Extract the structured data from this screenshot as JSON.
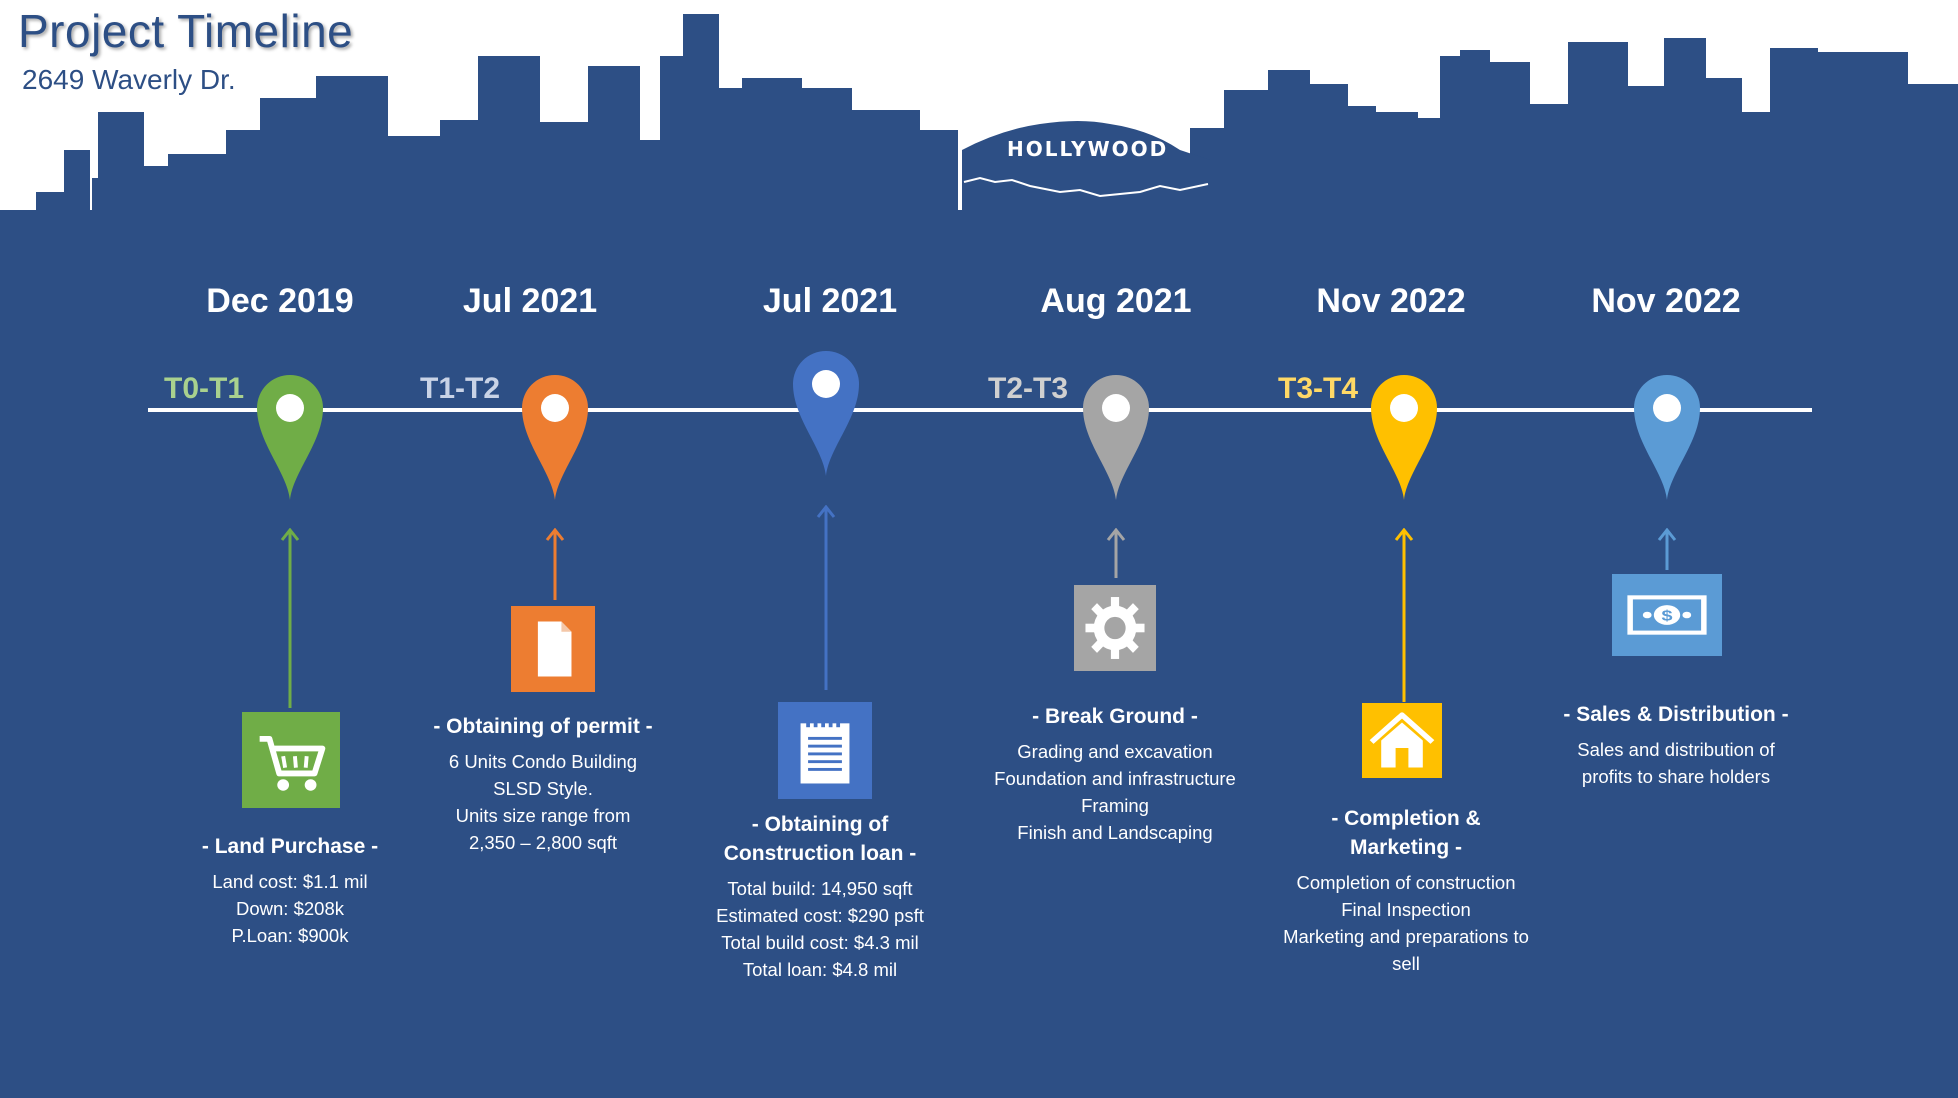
{
  "header": {
    "title": "Project Timeline",
    "subtitle": "2649 Waverly Dr.",
    "landmark_sign": "HOLLYWOOD"
  },
  "colors": {
    "background": "#2d4f85",
    "green": "#70ad47",
    "orange": "#ed7d31",
    "blue": "#4472c4",
    "gray": "#a5a5a5",
    "yellow": "#ffc000",
    "lightblue": "#5b9bd5"
  },
  "milestones": [
    {
      "date": "Dec 2019",
      "phase": "T0-T1",
      "phase_color": "#a9d18e",
      "color": "#70ad47",
      "icon": "shopping-cart-icon",
      "heading": [
        "- Land Purchase -"
      ],
      "details": [
        "Land cost: $1.1 mil",
        "Down: $208k",
        "P.Loan: $900k"
      ]
    },
    {
      "date": "Jul 2021",
      "phase": "T1-T2",
      "phase_color": "#c9d3e6",
      "color": "#ed7d31",
      "icon": "document-icon",
      "heading": [
        "- Obtaining of permit -"
      ],
      "details": [
        "6 Units Condo Building",
        "SLSD Style.",
        "Units size range from",
        "2,350 – 2,800 sqft"
      ]
    },
    {
      "date": "Jul 2021",
      "phase": "",
      "phase_color": "#ffffff",
      "color": "#4472c4",
      "icon": "notepad-icon",
      "heading": [
        "- Obtaining of",
        "Construction loan -"
      ],
      "details": [
        "Total build: 14,950 sqft",
        "Estimated cost: $290 psft",
        "Total build cost: $4.3 mil",
        "Total loan: $4.8 mil"
      ]
    },
    {
      "date": "Aug 2021",
      "phase": "T2-T3",
      "phase_color": "#d0d0d0",
      "color": "#a5a5a5",
      "icon": "gear-icon",
      "heading": [
        "- Break Ground -"
      ],
      "details": [
        "Grading and excavation",
        "Foundation and infrastructure",
        "Framing",
        "Finish and Landscaping"
      ]
    },
    {
      "date": "Nov 2022",
      "phase": "T3-T4",
      "phase_color": "#ffd966",
      "color": "#ffc000",
      "icon": "house-icon",
      "heading": [
        "- Completion &",
        "Marketing -"
      ],
      "details": [
        "Completion of construction",
        "Final Inspection",
        "Marketing and preparations to",
        "sell"
      ]
    },
    {
      "date": "Nov 2022",
      "phase": "",
      "phase_color": "#ffffff",
      "color": "#5b9bd5",
      "icon": "money-icon",
      "heading": [
        "- Sales & Distribution -"
      ],
      "details": [
        "Sales and distribution of",
        "profits to share holders"
      ]
    }
  ]
}
